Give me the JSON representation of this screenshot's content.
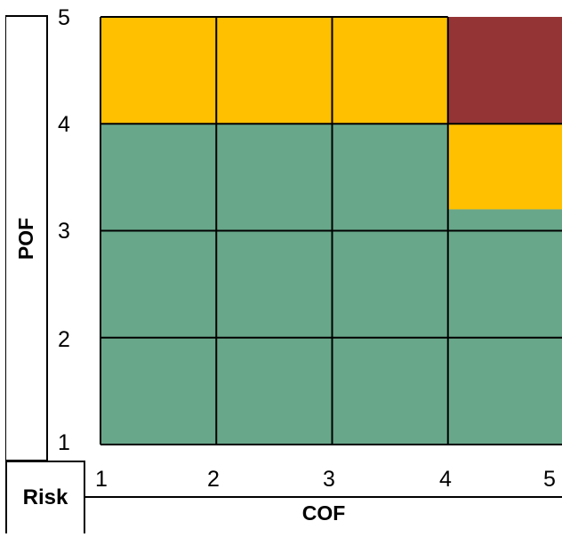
{
  "axes": {
    "y_label": "POF",
    "x_label": "COF",
    "corner_label": "Risk",
    "y_ticks": [
      "1",
      "2",
      "3",
      "4",
      "5"
    ],
    "x_ticks": [
      "1",
      "2",
      "3",
      "4",
      "5"
    ]
  },
  "colors": {
    "low": "#68A78A",
    "medium": "#FFC000",
    "high": "#943434",
    "grid_line": "#000000"
  },
  "risk_cells": [
    {
      "cof": [
        1,
        2
      ],
      "pof": [
        4,
        5
      ],
      "level": "medium"
    },
    {
      "cof": [
        2,
        3
      ],
      "pof": [
        4,
        5
      ],
      "level": "medium"
    },
    {
      "cof": [
        3,
        4
      ],
      "pof": [
        4,
        5
      ],
      "level": "medium"
    },
    {
      "cof": [
        4,
        5
      ],
      "pof": [
        4,
        5
      ],
      "level": "high"
    },
    {
      "cof": [
        1,
        2
      ],
      "pof": [
        3,
        4
      ],
      "level": "low"
    },
    {
      "cof": [
        2,
        3
      ],
      "pof": [
        3,
        4
      ],
      "level": "low"
    },
    {
      "cof": [
        3,
        4
      ],
      "pof": [
        3,
        4
      ],
      "level": "low"
    },
    {
      "cof": [
        4,
        5
      ],
      "pof": [
        3.2,
        4
      ],
      "level": "medium"
    },
    {
      "cof": [
        4,
        5
      ],
      "pof": [
        3,
        3.2
      ],
      "level": "low"
    },
    {
      "cof": [
        1,
        2
      ],
      "pof": [
        2,
        3
      ],
      "level": "low"
    },
    {
      "cof": [
        2,
        3
      ],
      "pof": [
        2,
        3
      ],
      "level": "low"
    },
    {
      "cof": [
        3,
        4
      ],
      "pof": [
        2,
        3
      ],
      "level": "low"
    },
    {
      "cof": [
        4,
        5
      ],
      "pof": [
        2,
        3
      ],
      "level": "low"
    },
    {
      "cof": [
        1,
        2
      ],
      "pof": [
        1,
        2
      ],
      "level": "low"
    },
    {
      "cof": [
        2,
        3
      ],
      "pof": [
        1,
        2
      ],
      "level": "low"
    },
    {
      "cof": [
        3,
        4
      ],
      "pof": [
        1,
        2
      ],
      "level": "low"
    },
    {
      "cof": [
        4,
        5
      ],
      "pof": [
        1,
        2
      ],
      "level": "low"
    }
  ]
}
